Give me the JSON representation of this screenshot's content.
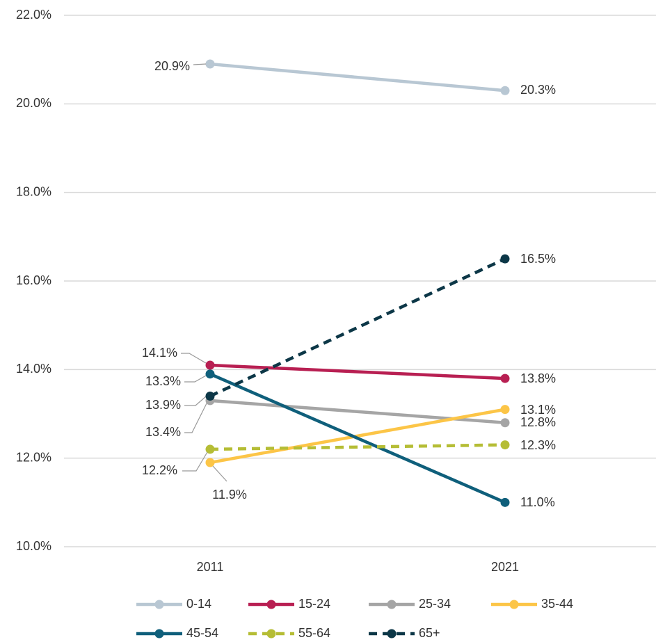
{
  "chart_data": {
    "type": "line",
    "categories": [
      "2011",
      "2021"
    ],
    "ylim": [
      10,
      22
    ],
    "yticks": [
      {
        "value": 10,
        "label": "10.0%"
      },
      {
        "value": 12,
        "label": "12.0%"
      },
      {
        "value": 14,
        "label": "14.0%"
      },
      {
        "value": 16,
        "label": "16.0%"
      },
      {
        "value": 18,
        "label": "18.0%"
      },
      {
        "value": 20,
        "label": "20.0%"
      },
      {
        "value": 22,
        "label": "22.0%"
      }
    ],
    "grid": true,
    "legend": "bottom",
    "series": [
      {
        "name": "0-14",
        "color": "#b8c7d3",
        "dashed": false,
        "values": [
          20.9,
          20.3
        ],
        "value_labels": [
          "20.9%",
          "20.3%"
        ]
      },
      {
        "name": "15-24",
        "color": "#b81f52",
        "dashed": false,
        "values": [
          14.1,
          13.8
        ],
        "value_labels": [
          "14.1%",
          "13.8%"
        ]
      },
      {
        "name": "25-34",
        "color": "#a5a5a5",
        "dashed": false,
        "values": [
          13.3,
          12.8
        ],
        "value_labels": [
          "13.3%",
          "12.8%"
        ]
      },
      {
        "name": "35-44",
        "color": "#fcc547",
        "dashed": false,
        "values": [
          11.9,
          13.1
        ],
        "value_labels": [
          "11.9%",
          "13.1%"
        ]
      },
      {
        "name": "45-54",
        "color": "#0f5f7b",
        "dashed": false,
        "values": [
          13.9,
          11.0
        ],
        "value_labels": [
          "13.9%",
          "11.0%"
        ]
      },
      {
        "name": "55-64",
        "color": "#b5bd35",
        "dashed": true,
        "values": [
          12.2,
          12.3
        ],
        "value_labels": [
          "12.2%",
          "12.3%"
        ]
      },
      {
        "name": "65+",
        "color": "#0c3747",
        "dashed": true,
        "values": [
          13.4,
          16.5
        ],
        "value_labels": [
          "13.4%",
          "16.5%"
        ]
      }
    ]
  }
}
